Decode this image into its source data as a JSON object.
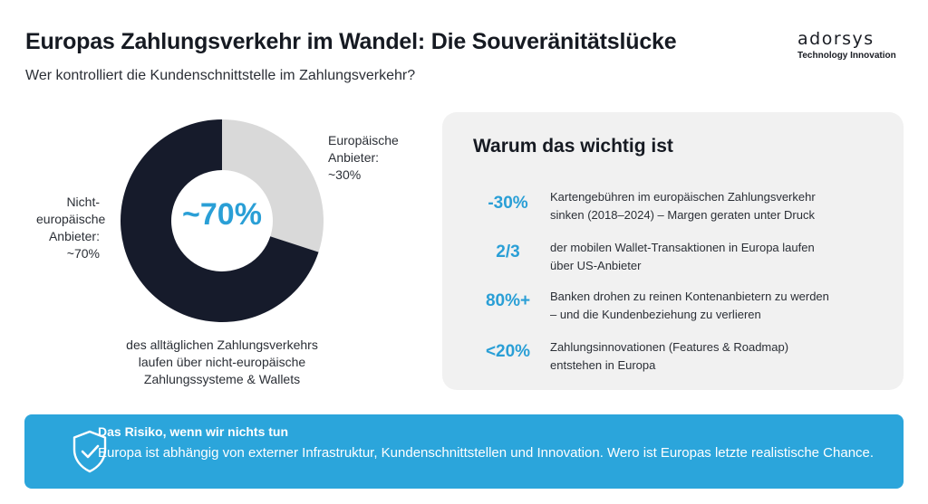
{
  "header": {
    "title": "Europas Zahlungsverkehr im Wandel: Die Souveränitätslücke",
    "subtitle": "Wer kontrolliert die Kundenschnittstelle im Zahlungsverkehr?"
  },
  "logo": {
    "wordmark": "adorsys",
    "tagline": "Technology Innovation"
  },
  "chart_data": {
    "type": "pie",
    "style": "donut",
    "title": "",
    "categories": [
      "Europäische Anbieter",
      "Nicht-europäische Anbieter"
    ],
    "values": [
      30,
      70
    ],
    "unit": "%",
    "colors": [
      "#d9d9d9",
      "#161b2b"
    ],
    "center_label": "~70%",
    "slice_labels": [
      [
        "Europäische",
        "Anbieter:",
        "~30%"
      ],
      [
        "Nicht-",
        "europäische",
        "Anbieter:",
        "~70%"
      ]
    ],
    "caption": [
      "des alltäglichen Zahlungsverkehrs",
      "laufen über nicht-europäische",
      "Zahlungssysteme & Wallets"
    ]
  },
  "panel": {
    "title": "Warum das wichtig ist",
    "stats": [
      {
        "value": "-30%",
        "lines": [
          "Kartengebühren im europäischen Zahlungsverkehr",
          "sinken (2018–2024) – Margen geraten unter Druck"
        ]
      },
      {
        "value": "2/3",
        "lines": [
          "der mobilen Wallet-Transaktionen in Europa laufen",
          "über US-Anbieter"
        ]
      },
      {
        "value": "80%+",
        "lines": [
          "Banken drohen zu reinen Kontenanbietern zu werden",
          "– und die Kundenbeziehung zu verlieren"
        ]
      },
      {
        "value": "<20%",
        "lines": [
          "Zahlungsinnovationen (Features & Roadmap)",
          "entstehen in Europa"
        ]
      }
    ]
  },
  "banner": {
    "icon": "shield-check-icon",
    "title": "Das Risiko, wenn wir nichts tun",
    "text": "Europa ist abhängig von externer Infrastruktur, Kundenschnittstellen und Innovation. Wero ist Europas letzte realistische Chance.",
    "color": "#2ba5db"
  }
}
